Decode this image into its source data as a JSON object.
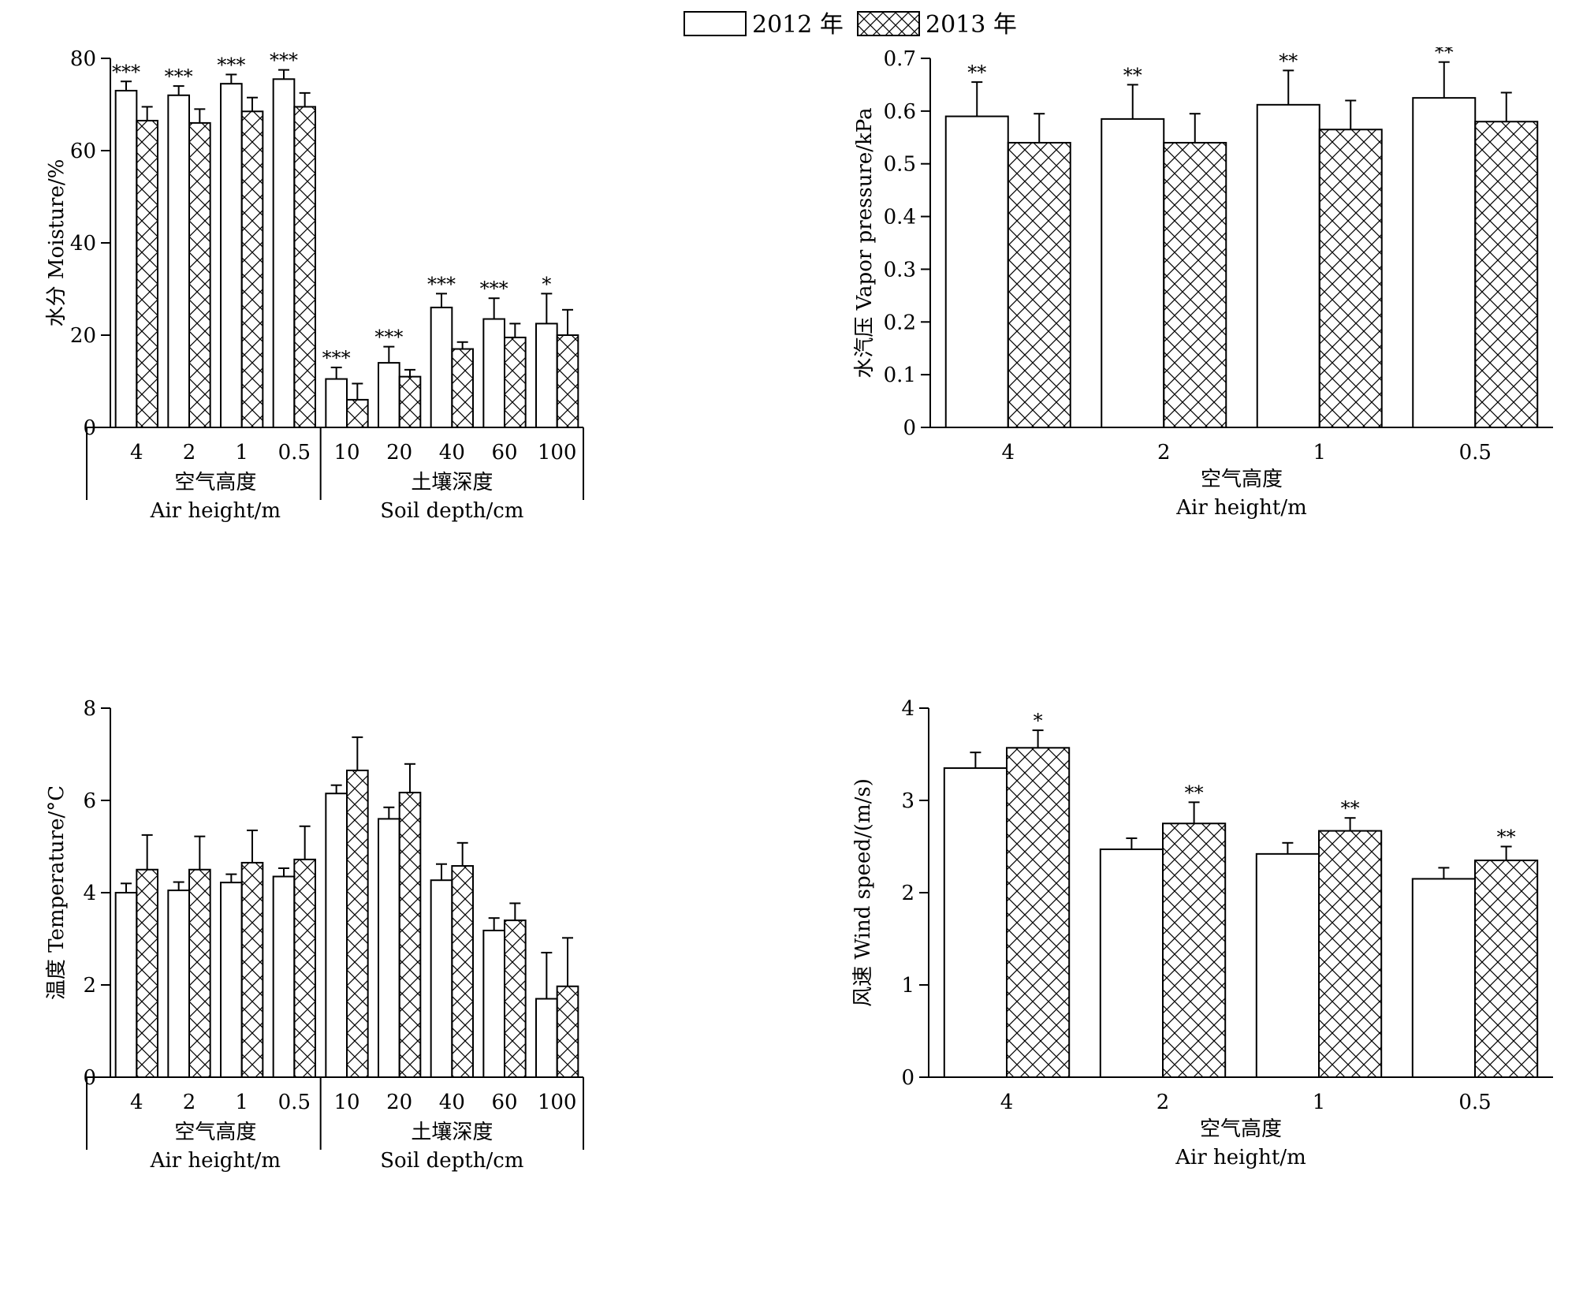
{
  "legend": {
    "items": [
      {
        "label": "2012 年",
        "pattern": "white"
      },
      {
        "label": "2013 年",
        "pattern": "crosshatch"
      }
    ]
  },
  "colors": {
    "bar_outline": "#000000",
    "bar_fill": "#ffffff",
    "hatch": "#000000"
  },
  "chart_data": [
    {
      "id": "moisture",
      "type": "bar",
      "ylabel": "水分 Moisture/%",
      "ylim": [
        0,
        80
      ],
      "yticks": [
        0,
        20,
        40,
        60,
        80
      ],
      "categories": [
        "4",
        "2",
        "1",
        "0.5",
        "10",
        "20",
        "40",
        "60",
        "100"
      ],
      "groups": [
        {
          "cn": "空气高度",
          "en": "Air height/m",
          "count": 4
        },
        {
          "cn": "土壤深度",
          "en": "Soil depth/cm",
          "count": 5
        }
      ],
      "series": [
        {
          "name": "2012 年",
          "values": [
            73,
            72,
            74.5,
            75.5,
            10.5,
            14,
            26,
            23.5,
            22.5
          ],
          "errors": [
            2,
            2,
            2,
            2,
            2.5,
            3.5,
            3,
            4.5,
            6.5
          ]
        },
        {
          "name": "2013 年",
          "values": [
            66.5,
            66,
            68.5,
            69.5,
            6,
            11,
            17,
            19.5,
            20
          ],
          "errors": [
            3,
            3,
            3,
            3,
            3.5,
            1.5,
            1.5,
            3,
            5.5
          ]
        }
      ],
      "significance": [
        "***",
        "***",
        "***",
        "***",
        "***",
        "***",
        "***",
        "***",
        "*"
      ],
      "significance_on": [
        0,
        0,
        0,
        0,
        0,
        0,
        0,
        0,
        0
      ]
    },
    {
      "id": "vapor",
      "type": "bar",
      "ylabel": "水汽压 Vapor pressure/kPa",
      "ylim": [
        0,
        0.7
      ],
      "yticks": [
        0,
        0.1,
        0.2,
        0.3,
        0.4,
        0.5,
        0.6,
        0.7
      ],
      "categories": [
        "4",
        "2",
        "1",
        "0.5"
      ],
      "groups": [
        {
          "cn": "空气高度",
          "en": "Air height/m",
          "count": 4
        }
      ],
      "series": [
        {
          "name": "2012 年",
          "values": [
            0.59,
            0.585,
            0.612,
            0.625
          ],
          "errors": [
            0.065,
            0.065,
            0.065,
            0.068
          ]
        },
        {
          "name": "2013 年",
          "values": [
            0.54,
            0.54,
            0.565,
            0.58
          ],
          "errors": [
            0.055,
            0.055,
            0.055,
            0.055
          ]
        }
      ],
      "significance": [
        "**",
        "**",
        "**",
        "**"
      ],
      "significance_on": [
        0,
        0,
        0,
        0
      ]
    },
    {
      "id": "temperature",
      "type": "bar",
      "ylabel": "温度 Temperature/°C",
      "ylim": [
        0,
        8
      ],
      "yticks": [
        0,
        2,
        4,
        6,
        8
      ],
      "categories": [
        "4",
        "2",
        "1",
        "0.5",
        "10",
        "20",
        "40",
        "60",
        "100"
      ],
      "groups": [
        {
          "cn": "空气高度",
          "en": "Air height/m",
          "count": 4
        },
        {
          "cn": "土壤深度",
          "en": "Soil depth/cm",
          "count": 5
        }
      ],
      "series": [
        {
          "name": "2012 年",
          "values": [
            4,
            4.05,
            4.22,
            4.35,
            6.15,
            5.6,
            4.27,
            3.18,
            1.7
          ],
          "errors": [
            0.2,
            0.18,
            0.18,
            0.18,
            0.18,
            0.25,
            0.35,
            0.27,
            1.0
          ]
        },
        {
          "name": "2013 年",
          "values": [
            4.5,
            4.5,
            4.65,
            4.72,
            6.65,
            6.17,
            4.58,
            3.4,
            1.97
          ],
          "errors": [
            0.75,
            0.72,
            0.7,
            0.72,
            0.72,
            0.62,
            0.5,
            0.37,
            1.05
          ]
        }
      ],
      "significance": [
        "",
        "",
        "",
        "",
        "",
        "",
        "",
        "",
        ""
      ],
      "significance_on": [
        0,
        0,
        0,
        0,
        0,
        0,
        0,
        0,
        0
      ]
    },
    {
      "id": "wind",
      "type": "bar",
      "ylabel": "风速 Wind speed/(m/s)",
      "ylim": [
        0,
        4
      ],
      "yticks": [
        0,
        1,
        2,
        3,
        4
      ],
      "categories": [
        "4",
        "2",
        "1",
        "0.5"
      ],
      "groups": [
        {
          "cn": "空气高度",
          "en": "Air height/m",
          "count": 4
        }
      ],
      "series": [
        {
          "name": "2012 年",
          "values": [
            3.35,
            2.47,
            2.42,
            2.15
          ],
          "errors": [
            0.17,
            0.12,
            0.12,
            0.12
          ]
        },
        {
          "name": "2013 年",
          "values": [
            3.57,
            2.75,
            2.67,
            2.35
          ],
          "errors": [
            0.19,
            0.23,
            0.14,
            0.15
          ]
        }
      ],
      "significance": [
        "*",
        "**",
        "**",
        "**"
      ],
      "significance_on": [
        1,
        1,
        1,
        1
      ]
    }
  ]
}
